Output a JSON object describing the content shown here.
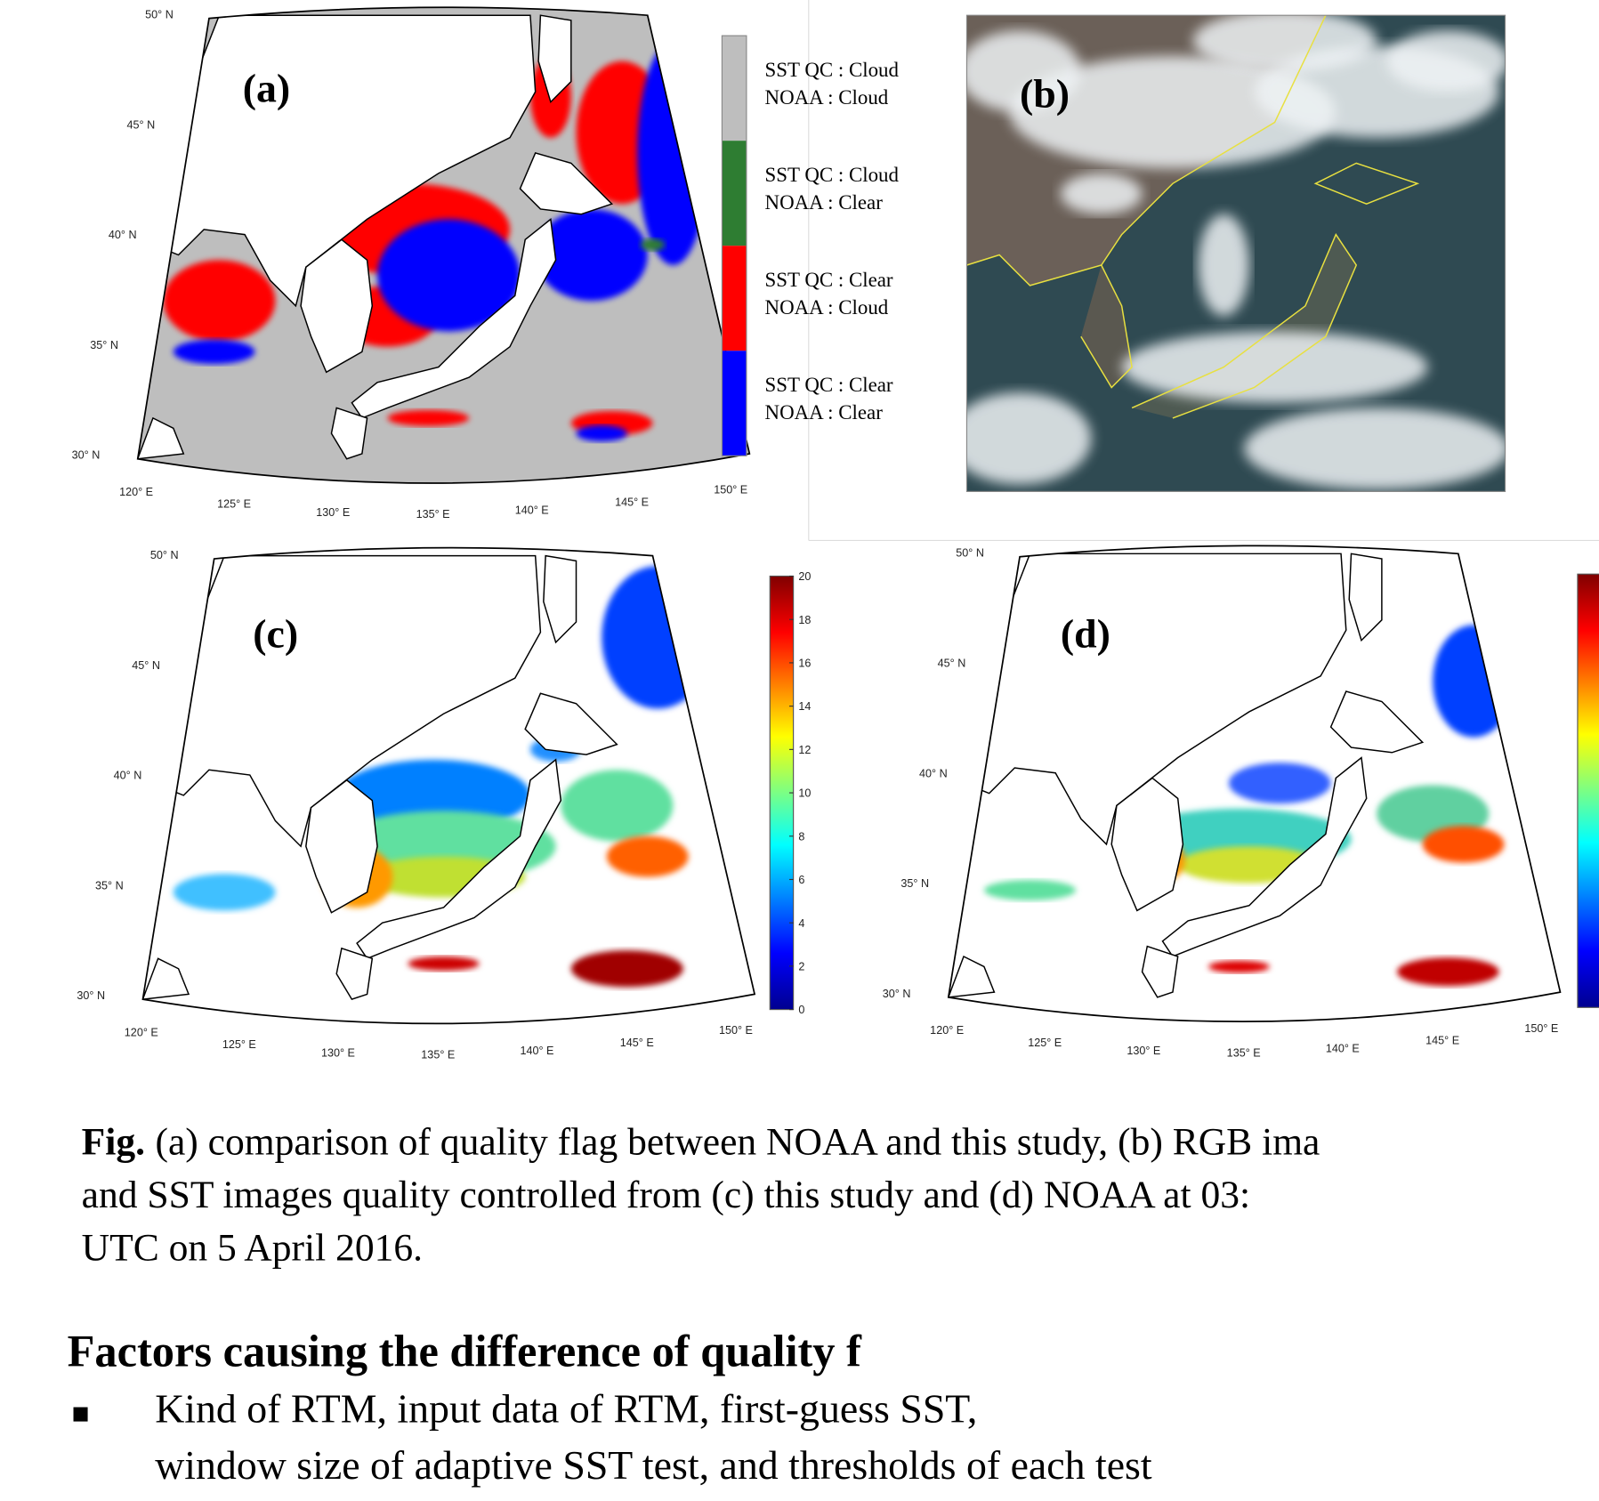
{
  "panels": [
    {
      "label": "(a)",
      "lat_labels": [
        "50° N",
        "45° N",
        "40° N",
        "35° N",
        "30° N"
      ],
      "lon_labels": [
        "120° E",
        "125° E",
        "130° E",
        "135° E",
        "140° E",
        "145° E",
        "150° E"
      ]
    },
    {
      "label": "(b)"
    },
    {
      "label": "(c)",
      "lat_labels": [
        "50° N",
        "45° N",
        "40° N",
        "35° N",
        "30° N"
      ],
      "lon_labels": [
        "120° E",
        "125° E",
        "130° E",
        "135° E",
        "140° E",
        "145° E",
        "150° E"
      ]
    },
    {
      "label": "(d)",
      "lat_labels": [
        "50° N",
        "45° N",
        "40° N",
        "35° N",
        "30° N"
      ],
      "lon_labels": [
        "120° E",
        "125° E",
        "130° E",
        "135° E",
        "140° E",
        "145° E",
        "150° E"
      ]
    }
  ],
  "legend": {
    "entries": [
      {
        "sst_qc": "SST QC : Cloud",
        "noaa": "NOAA   : Cloud",
        "color": "#bebebe"
      },
      {
        "sst_qc": "SST QC : Cloud",
        "noaa": "NOAA   : Clear",
        "color": "#2e7d32"
      },
      {
        "sst_qc": "SST QC : Clear",
        "noaa": "NOAA   : Cloud",
        "color": "#ff0000"
      },
      {
        "sst_qc": "SST QC : Clear",
        "noaa": "NOAA   : Clear",
        "color": "#0000ff"
      }
    ]
  },
  "colorbar": {
    "ticks": [
      0,
      2,
      4,
      6,
      8,
      10,
      12,
      14,
      16,
      18,
      20
    ]
  },
  "caption": {
    "lead": "Fig.",
    "lines": [
      "(a) comparison of quality flag between NOAA and this study, (b) RGB ima",
      "and SST images  quality controlled from (c) this study and (d) NOAA at 03:",
      "UTC on  5 April 2016."
    ]
  },
  "section": {
    "heading": "Factors causing the difference of quality f",
    "bullets": [
      [
        "Kind of RTM, input data of RTM, first-guess SST,",
        "window size of adaptive SST test, and thresholds of each test"
      ]
    ]
  }
}
